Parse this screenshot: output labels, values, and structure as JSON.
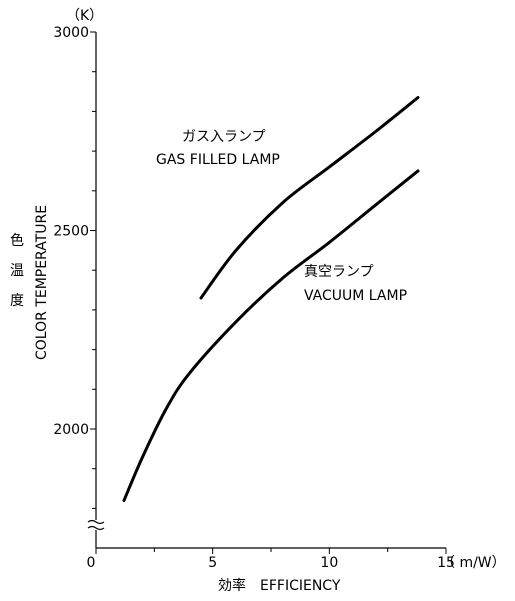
{
  "chart_data": {
    "type": "line",
    "xlabel": "効率　EFFICIENCY",
    "ylabel": "COLOR TEMPERATURE",
    "ylabel_cjk": [
      "色",
      "温",
      "度"
    ],
    "y_unit": "（K）",
    "x_unit": "（ m/W）",
    "xlim": [
      0,
      15
    ],
    "ylim": [
      1750,
      3000
    ],
    "y_axis_break": true,
    "x_ticks": [
      "0",
      "5",
      "10",
      "15"
    ],
    "y_ticks": [
      "2000",
      "2500",
      "3000"
    ],
    "series": [
      {
        "name_ja": "ガス入ランプ",
        "name_en": "GAS FILLED LAMP",
        "points": [
          [
            4.5,
            2330
          ],
          [
            6,
            2450
          ],
          [
            8,
            2570
          ],
          [
            10,
            2660
          ],
          [
            12,
            2750
          ],
          [
            13.8,
            2835
          ]
        ]
      },
      {
        "name_ja": "真空ランプ",
        "name_en": "VACUUM LAMP",
        "points": [
          [
            1.2,
            1820
          ],
          [
            2,
            1930
          ],
          [
            3,
            2050
          ],
          [
            4,
            2140
          ],
          [
            6,
            2270
          ],
          [
            8,
            2380
          ],
          [
            10,
            2470
          ],
          [
            12,
            2565
          ],
          [
            13.8,
            2650
          ]
        ]
      }
    ],
    "grid": false
  }
}
